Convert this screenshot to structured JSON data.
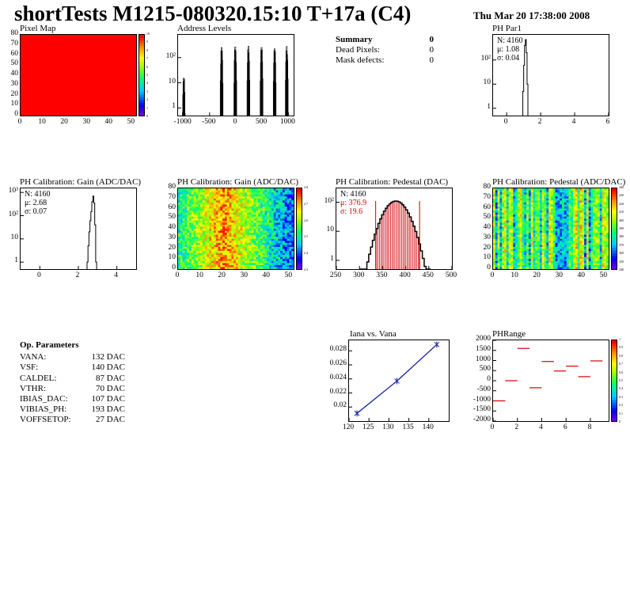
{
  "header": {
    "title": "shortTests M1215-080320.15:10 T+17a (C4)",
    "date": "Thu Mar 20 17:38:00 2008"
  },
  "summary": {
    "title": "Summary",
    "title_value": "0",
    "rows": [
      {
        "label": "Dead Pixels:",
        "value": "0"
      },
      {
        "label": "Mask defects:",
        "value": "0"
      }
    ]
  },
  "op_parameters": {
    "title": "Op. Parameters",
    "rows": [
      {
        "label": "VANA:",
        "value": "132 DAC"
      },
      {
        "label": "VSF:",
        "value": "140 DAC"
      },
      {
        "label": "CALDEL:",
        "value": "87 DAC"
      },
      {
        "label": "VTHR:",
        "value": "70 DAC"
      },
      {
        "label": "IBIAS_DAC:",
        "value": "107 DAC"
      },
      {
        "label": "VIBIAS_PH:",
        "value": "193 DAC"
      },
      {
        "label": "VOFFSETOP:",
        "value": "27 DAC"
      }
    ]
  },
  "chart_data": [
    {
      "id": "pixel-map",
      "type": "heatmap",
      "title": "Pixel Map",
      "xlim": [
        0,
        52
      ],
      "ylim": [
        0,
        80
      ],
      "xticks": [
        "0",
        "10",
        "20",
        "30",
        "40",
        "50"
      ],
      "yticks": [
        "0",
        "10",
        "20",
        "30",
        "40",
        "50",
        "60",
        "70",
        "80"
      ],
      "zticks": [
        "0",
        "1",
        "2",
        "3",
        "4",
        "5",
        "6",
        "7",
        "8",
        "9",
        "10"
      ],
      "fill_value": 10,
      "fill_color": "#ff0000"
    },
    {
      "id": "address-levels",
      "type": "bar",
      "title": "Address Levels",
      "xlim": [
        -1100,
        1100
      ],
      "ylog": true,
      "xticks": [
        "-1000",
        "-500",
        "0",
        "500",
        "1000"
      ],
      "yticks": [
        "1",
        "10",
        "10²"
      ],
      "peaks": [
        {
          "x": -1000,
          "y": 20
        },
        {
          "x": -280,
          "y": 300
        },
        {
          "x": -20,
          "y": 300
        },
        {
          "x": 230,
          "y": 300
        },
        {
          "x": 480,
          "y": 300
        },
        {
          "x": 730,
          "y": 300
        },
        {
          "x": 960,
          "y": 300
        }
      ]
    },
    {
      "id": "ph-par1",
      "type": "bar",
      "title": "PH Par1",
      "xlim": [
        -0.8,
        6
      ],
      "ylog": true,
      "xticks": [
        "0",
        "2",
        "4",
        "6"
      ],
      "yticks": [
        "1",
        "10",
        "10²"
      ],
      "stats": [
        {
          "label": "N:",
          "value": "4160"
        },
        {
          "label": "μ:",
          "value": "1.08"
        },
        {
          "label": "σ:",
          "value": "0.04"
        }
      ],
      "x": [
        0.95,
        1.0,
        1.05,
        1.1,
        1.15,
        1.2
      ],
      "values": [
        5,
        60,
        400,
        700,
        200,
        10
      ]
    },
    {
      "id": "gain-hist",
      "type": "bar",
      "title": "PH Calibration: Gain (ADC/DAC)",
      "xlim": [
        -1,
        5
      ],
      "ylog": true,
      "xticks": [
        "0",
        "2",
        "4"
      ],
      "yticks": [
        "1",
        "10",
        "10²",
        "10³"
      ],
      "stats": [
        {
          "label": "N:",
          "value": "4160"
        },
        {
          "label": "μ:",
          "value": "2.68"
        },
        {
          "label": "σ:",
          "value": "0.07"
        }
      ],
      "x": [
        2.45,
        2.5,
        2.55,
        2.6,
        2.65,
        2.7,
        2.75,
        2.8,
        2.85,
        2.9
      ],
      "values": [
        1,
        5,
        20,
        60,
        150,
        400,
        700,
        350,
        40,
        1
      ]
    },
    {
      "id": "gain-map",
      "type": "heatmap",
      "title": "PH Calibration: Gain (ADC/DAC)",
      "xlim": [
        0,
        52
      ],
      "ylim": [
        0,
        80
      ],
      "xticks": [
        "0",
        "10",
        "20",
        "30",
        "40",
        "50"
      ],
      "yticks": [
        "0",
        "10",
        "20",
        "30",
        "40",
        "50",
        "60",
        "70",
        "80"
      ],
      "zticks": [
        "2.3",
        "2.4",
        "2.5",
        "2.6",
        "2.7",
        "2.8"
      ]
    },
    {
      "id": "pedestal-hist",
      "type": "bar",
      "title": "PH Calibration: Pedestal (DAC)",
      "xlim": [
        250,
        500
      ],
      "ylog": true,
      "xticks": [
        "250",
        "300",
        "350",
        "400",
        "450",
        "500"
      ],
      "yticks": [
        "1",
        "10",
        "10²"
      ],
      "stats": [
        {
          "label": "N:",
          "value": "4160"
        },
        {
          "label": "μ:",
          "value": "376.9"
        },
        {
          "label": "σ:",
          "value": "19.6"
        }
      ],
      "fit_range": [
        335,
        430
      ]
    },
    {
      "id": "pedestal-map",
      "type": "heatmap",
      "title": "PH Calibration: Pedestal (ADC/DAC)",
      "xlim": [
        0,
        52
      ],
      "ylim": [
        0,
        80
      ],
      "xticks": [
        "0",
        "10",
        "20",
        "30",
        "40",
        "50"
      ],
      "yticks": [
        "0",
        "10",
        "20",
        "30",
        "40",
        "50",
        "60",
        "70",
        "80"
      ],
      "zticks": [
        "340",
        "350",
        "360",
        "370",
        "380",
        "390",
        "400",
        "410",
        "420",
        "430",
        "440"
      ]
    },
    {
      "id": "iana-vana",
      "type": "line",
      "title": "Iana vs. Vana",
      "xlim": [
        120,
        145
      ],
      "ylim": [
        0.018,
        0.0295
      ],
      "xticks": [
        "120",
        "125",
        "130",
        "135",
        "140"
      ],
      "yticks": [
        "0.02",
        "0.022",
        "0.024",
        "0.026",
        "0.028"
      ],
      "x": [
        122,
        132,
        142
      ],
      "values": [
        0.0191,
        0.0237,
        0.0289
      ]
    },
    {
      "id": "ph-range",
      "type": "scatter",
      "title": "PHRange",
      "xlim": [
        0,
        9.5
      ],
      "ylim": [
        -2000,
        2000
      ],
      "xticks": [
        "0",
        "2",
        "4",
        "6",
        "8"
      ],
      "yticks": [
        "-2000",
        "-1500",
        "-1000",
        "-500",
        "0",
        "500",
        "1000",
        "1500",
        "2000"
      ],
      "zticks": [
        "0",
        "0.1",
        "0.2",
        "0.3",
        "0.4",
        "0.5",
        "0.6",
        "0.7",
        "0.8",
        "0.9",
        "1"
      ],
      "x": [
        0,
        1,
        2,
        3,
        4,
        5,
        6,
        7,
        8
      ],
      "values": [
        -1000,
        0,
        1600,
        -350,
        950,
        480,
        720,
        200,
        980
      ]
    }
  ]
}
